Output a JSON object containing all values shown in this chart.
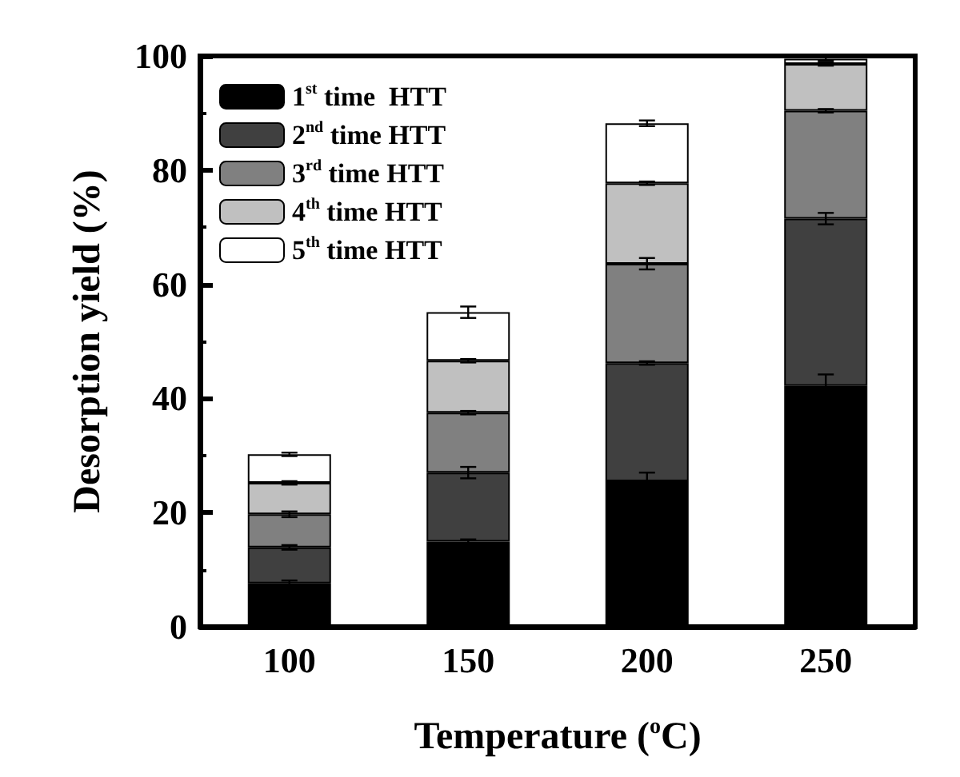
{
  "chart_data": {
    "type": "bar",
    "stacked": true,
    "xlabel": "Temperature ($^{o}$C)",
    "ylabel": "Desorption yield (%)",
    "categories": [
      "100",
      "150",
      "200",
      "250"
    ],
    "series": [
      {
        "name": "1$^{st}$ time  HTT",
        "color": "#000000",
        "values": [
          7.6,
          14.9,
          25.5,
          42.2
        ],
        "errors": [
          0.5,
          0.4,
          1.5,
          2.0
        ]
      },
      {
        "name": "2$^{nd}$ time HTT",
        "color": "#404040",
        "values": [
          6.3,
          12.1,
          20.7,
          29.3
        ],
        "errors": [
          0.4,
          1.0,
          0.3,
          1.0
        ]
      },
      {
        "name": "3$^{rd}$ time HTT",
        "color": "#808080",
        "values": [
          5.8,
          10.5,
          17.4,
          18.9
        ],
        "errors": [
          0.5,
          0.3,
          1.0,
          0.3
        ]
      },
      {
        "name": "4$^{th}$ time HTT",
        "color": "#c0c0c0",
        "values": [
          5.5,
          9.1,
          14.1,
          8.2
        ],
        "errors": [
          0.3,
          0.3,
          0.3,
          0.3
        ]
      },
      {
        "name": "5$^{th}$ time HTT",
        "color": "#ffffff",
        "values": [
          5.0,
          8.5,
          10.5,
          0.9
        ],
        "errors": [
          0.3,
          1.0,
          0.5,
          0.3
        ]
      }
    ],
    "ylim": [
      0,
      100
    ],
    "yticks": [
      0,
      20,
      40,
      60,
      80,
      100
    ],
    "grid": false,
    "legend": "top left"
  }
}
